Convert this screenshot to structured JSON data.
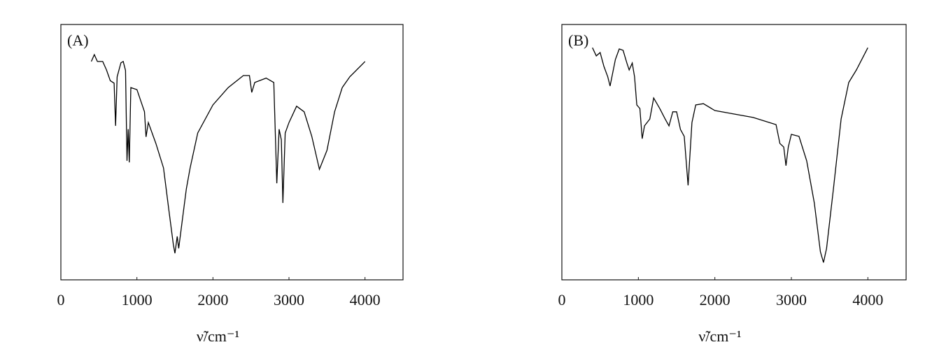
{
  "chart_data": [
    {
      "type": "line",
      "title": "(A)",
      "xlabel": "ν̃/cm⁻¹",
      "color": "#000000",
      "xlim": [
        0,
        4500
      ],
      "xticks": [
        0,
        1000,
        2000,
        3000,
        4000
      ],
      "ylim": [
        0,
        100
      ],
      "x": [
        400,
        440,
        480,
        550,
        600,
        650,
        700,
        720,
        740,
        790,
        820,
        850,
        870,
        885,
        900,
        920,
        1000,
        1100,
        1120,
        1150,
        1250,
        1350,
        1420,
        1480,
        1500,
        1530,
        1550,
        1600,
        1650,
        1700,
        1800,
        2000,
        2200,
        2400,
        2480,
        2510,
        2550,
        2700,
        2800,
        2840,
        2870,
        2900,
        2920,
        2950,
        3000,
        3100,
        3200,
        3300,
        3400,
        3500,
        3600,
        3700,
        3800,
        4000
      ],
      "values": [
        85.5,
        88.2,
        85.5,
        85.5,
        82.2,
        78,
        77,
        60.3,
        79.5,
        85,
        85.5,
        82,
        46.6,
        59,
        46,
        75.3,
        74.5,
        65.8,
        56,
        61.6,
        53.4,
        43.8,
        27.4,
        13.7,
        10.4,
        17,
        12.3,
        24.1,
        35.6,
        43.8,
        57.5,
        68.5,
        75.3,
        80,
        80,
        73.4,
        77.3,
        79,
        77.3,
        37.8,
        59,
        54.8,
        30.1,
        57.5,
        61.6,
        68,
        65.8,
        56.2,
        43.3,
        50.7,
        65.8,
        75.3,
        79.5,
        85.5
      ]
    },
    {
      "type": "line",
      "title": "(B)",
      "xlabel": "ν̃/cm⁻¹",
      "color": "#000000",
      "xlim": [
        0,
        4500
      ],
      "xticks": [
        0,
        1000,
        2000,
        3000,
        4000
      ],
      "ylim": [
        0,
        100
      ],
      "x": [
        400,
        450,
        500,
        550,
        600,
        630,
        700,
        750,
        800,
        850,
        880,
        920,
        950,
        980,
        1020,
        1050,
        1080,
        1150,
        1200,
        1280,
        1350,
        1400,
        1450,
        1500,
        1550,
        1600,
        1650,
        1700,
        1750,
        1850,
        2000,
        2500,
        2800,
        2850,
        2900,
        2930,
        2960,
        3000,
        3100,
        3200,
        3300,
        3380,
        3420,
        3460,
        3550,
        3650,
        3750,
        3850,
        4000
      ],
      "values": [
        90.9,
        87.7,
        89,
        83.6,
        79.5,
        75.9,
        86.3,
        90.4,
        89.9,
        84.9,
        82.2,
        84.9,
        79.5,
        68.5,
        67.1,
        55.3,
        60.3,
        63,
        71.2,
        67.1,
        63,
        60.3,
        65.8,
        65.8,
        58.9,
        56.2,
        37,
        61.6,
        68.5,
        69,
        66.3,
        63.6,
        60.8,
        53.4,
        52,
        44.7,
        52,
        57,
        56.2,
        46.6,
        30.1,
        11,
        6.8,
        12.3,
        35.6,
        63,
        77.3,
        82.2,
        90.9
      ]
    }
  ]
}
